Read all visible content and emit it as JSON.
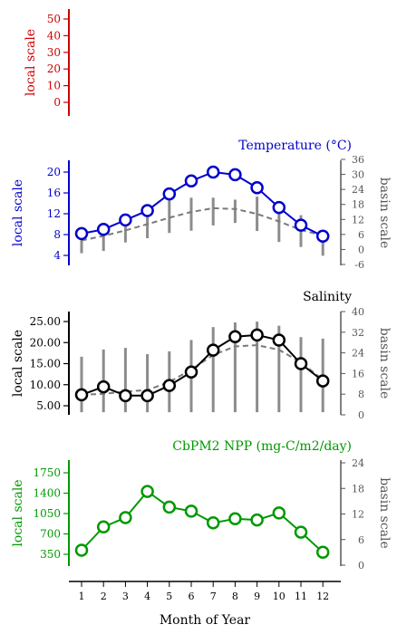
{
  "figure": {
    "xlabel": "Month of Year",
    "xticks": [
      "1",
      "2",
      "3",
      "4",
      "5",
      "6",
      "7",
      "8",
      "9",
      "10",
      "11",
      "12"
    ]
  },
  "chart_data": [
    {
      "type": "line",
      "title": "",
      "left_axis": {
        "label": "local scale",
        "ticks": [
          "0",
          "10",
          "20",
          "30",
          "40",
          "50"
        ],
        "ylim": [
          -5,
          55
        ],
        "color": "#cc0000"
      },
      "right_axis": null,
      "series": []
    },
    {
      "type": "line",
      "title": "Temperature (°C)",
      "color": "#0000cc",
      "x": [
        1,
        2,
        3,
        4,
        5,
        6,
        7,
        8,
        9,
        10,
        11,
        12
      ],
      "left_axis": {
        "label": "local scale",
        "ticks": [
          "4",
          "8",
          "12",
          "16",
          "20"
        ],
        "ylim": [
          2,
          22
        ],
        "color": "#0000cc"
      },
      "right_axis": {
        "label": "basin scale",
        "ticks": [
          "-6",
          "0",
          "6",
          "12",
          "18",
          "24",
          "30",
          "36"
        ],
        "ylim": [
          -6,
          36
        ],
        "color": "#555555"
      },
      "series": [
        {
          "axis": "local",
          "style": "solid line with open circle markers",
          "values": [
            8.2,
            9.0,
            10.8,
            12.6,
            15.8,
            18.3,
            20.0,
            19.5,
            17.0,
            13.2,
            9.8,
            7.7
          ]
        },
        {
          "axis": "basin",
          "style": "dashed line",
          "values": [
            3.6,
            5.4,
            7.6,
            10.1,
            12.7,
            15.0,
            16.5,
            16.2,
            14.2,
            11.2,
            7.8,
            5.6
          ]
        },
        {
          "axis": "basin",
          "style": "vertical range bars",
          "low": [
            -1.5,
            -0.6,
            2.8,
            4.5,
            6.6,
            7.5,
            9.6,
            10.6,
            7.4,
            3.0,
            1.0,
            -2.5
          ],
          "high": [
            7.8,
            10.1,
            12.5,
            15.7,
            20.5,
            20.7,
            20.7,
            19.9,
            21.1,
            18.8,
            13.7,
            6.4
          ]
        }
      ]
    },
    {
      "type": "line",
      "title": "Salinity",
      "color": "#000000",
      "x": [
        1,
        2,
        3,
        4,
        5,
        6,
        7,
        8,
        9,
        10,
        11,
        12
      ],
      "left_axis": {
        "label": "local scale",
        "ticks": [
          "5.00",
          "10.00",
          "15.00",
          "20.00",
          "25.00"
        ],
        "ylim": [
          2.5,
          27.5
        ],
        "color": "#000000"
      },
      "right_axis": {
        "label": "basin scale",
        "ticks": [
          "0",
          "8",
          "16",
          "24",
          "32",
          "40"
        ],
        "ylim": [
          0,
          40
        ],
        "color": "#555555"
      },
      "series": [
        {
          "axis": "local",
          "style": "solid line with open circle markers",
          "values": [
            7.6,
            9.5,
            7.4,
            7.4,
            9.8,
            13.0,
            18.2,
            21.4,
            21.8,
            20.6,
            15.0,
            10.9
          ]
        },
        {
          "axis": "basin",
          "style": "dashed line",
          "values": [
            7.8,
            8.1,
            9.0,
            9.6,
            12.7,
            17.5,
            23.2,
            26.5,
            27.0,
            25.2,
            20.3,
            13.6
          ]
        },
        {
          "axis": "basin",
          "style": "vertical range bars",
          "low": [
            1.0,
            1.0,
            1.0,
            1.0,
            1.0,
            1.0,
            1.0,
            1.0,
            1.0,
            1.0,
            1.0,
            1.0
          ],
          "high": [
            22.5,
            25.3,
            25.9,
            23.5,
            24.6,
            29.0,
            34.0,
            35.8,
            36.1,
            34.5,
            30.1,
            29.5
          ]
        }
      ]
    },
    {
      "type": "line",
      "title": "CbPM2 NPP (mg-C/m2/day)",
      "color": "#009900",
      "x": [
        1,
        2,
        3,
        4,
        5,
        6,
        7,
        8,
        9,
        10,
        11,
        12
      ],
      "left_axis": {
        "label": "local scale",
        "ticks": [
          "350",
          "700",
          "1050",
          "1400",
          "1750"
        ],
        "ylim": [
          175,
          1925
        ],
        "color": "#009900"
      },
      "right_axis": {
        "label": "basin scale",
        "ticks": [
          "0",
          "6",
          "12",
          "18",
          "24"
        ],
        "ylim": [
          -0.3,
          24.3
        ],
        "color": "#555555"
      },
      "series": [
        {
          "axis": "local",
          "style": "solid line with open circle markers",
          "values": [
            420,
            820,
            980,
            1430,
            1160,
            1090,
            890,
            960,
            940,
            1060,
            730,
            385
          ]
        }
      ]
    }
  ]
}
